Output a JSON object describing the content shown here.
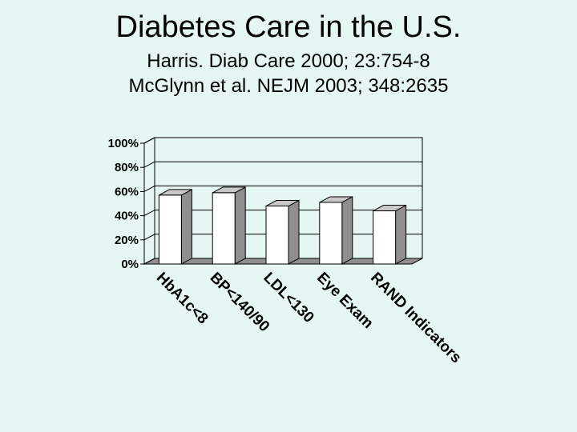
{
  "slide": {
    "title": "Diabetes Care in the U.S.",
    "citation_1": "Harris. Diab Care 2000; 23:754-8",
    "citation_2": "McGlynn et al. NEJM 2003; 348:2635"
  },
  "chart_data": {
    "type": "bar",
    "style": "3d-column",
    "title": "",
    "xlabel": "",
    "ylabel": "",
    "categories": [
      "HbA1c<8",
      "BP<140/90",
      "LDL<130",
      "Eye Exam",
      "RAND Indicators"
    ],
    "values": [
      0.57,
      0.59,
      0.48,
      0.51,
      0.44
    ],
    "ylim": [
      0,
      1
    ],
    "yticks": [
      0,
      0.2,
      0.4,
      0.6,
      0.8,
      1.0
    ],
    "ytick_labels": [
      "0%",
      "20%",
      "40%",
      "60%",
      "80%",
      "100%"
    ],
    "grid": true,
    "colors": {
      "bar_front": "#ffffff",
      "bar_side": "#8f8f8f",
      "bar_top": "#c8c8c8",
      "floor": "#8f8f8f",
      "plot_fill": "#e6f6f3",
      "stroke": "#000000"
    }
  }
}
